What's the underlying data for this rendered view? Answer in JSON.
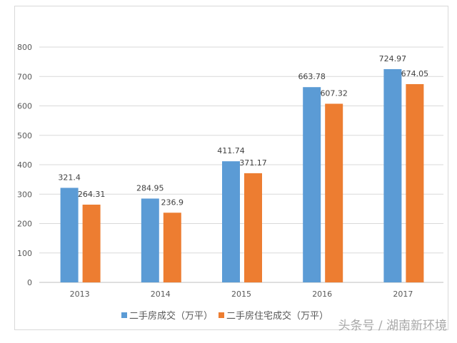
{
  "chart_data": {
    "type": "bar",
    "title": "",
    "xlabel": "",
    "ylabel": "",
    "categories": [
      "2013",
      "2014",
      "2015",
      "2016",
      "2017"
    ],
    "series": [
      {
        "name": "二手房成交（万平）",
        "color": "#5b9bd5",
        "values": [
          321.4,
          284.95,
          411.74,
          663.78,
          724.97
        ],
        "labels": [
          "321.4",
          "284.95",
          "411.74",
          "663.78",
          "724.97"
        ]
      },
      {
        "name": "二手房住宅成交（万平）",
        "color": "#ed7d31",
        "values": [
          264.31,
          236.9,
          371.17,
          607.32,
          674.05
        ],
        "labels": [
          "264.31",
          "236.9",
          "371.17",
          "607.32",
          "674.05"
        ]
      }
    ],
    "ylim": [
      0,
      800
    ],
    "yticks": [
      "0",
      "100",
      "200",
      "300",
      "400",
      "500",
      "600",
      "700",
      "800"
    ],
    "grid": true,
    "legend_position": "bottom"
  },
  "watermark": "头条号 / 湖南新环境"
}
